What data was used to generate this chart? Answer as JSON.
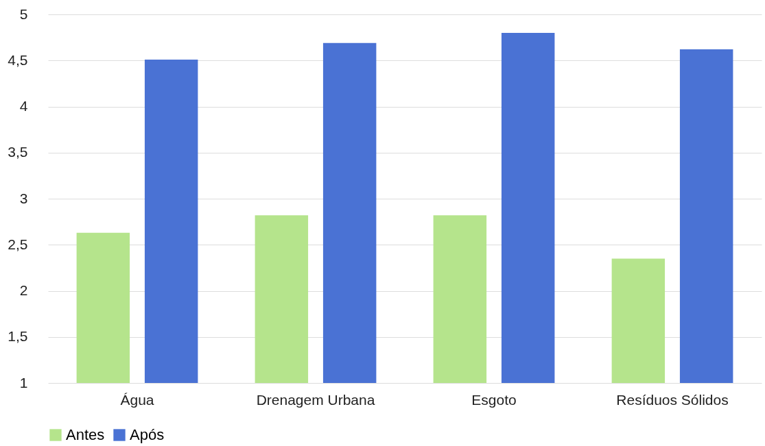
{
  "chart_data": {
    "type": "bar",
    "categories": [
      "Água",
      "Drenagem Urbana",
      "Esgoto",
      "Resíduos Sólidos"
    ],
    "series": [
      {
        "name": "Antes",
        "color": "#b5e48c",
        "values": [
          2.63,
          2.82,
          2.82,
          2.35
        ]
      },
      {
        "name": "Após",
        "color": "#4a72d4",
        "values": [
          4.51,
          4.69,
          4.8,
          4.62
        ]
      }
    ],
    "ylim": [
      1,
      5
    ],
    "yticks": [
      1,
      {
        "value": 1.5,
        "label": "1,5"
      },
      2,
      {
        "value": 2.5,
        "label": "2,5"
      },
      3,
      {
        "value": 3.5,
        "label": "3,5"
      },
      4,
      {
        "value": 4.5,
        "label": "4,5"
      },
      5
    ],
    "grid": "y",
    "legend": "bottom"
  }
}
